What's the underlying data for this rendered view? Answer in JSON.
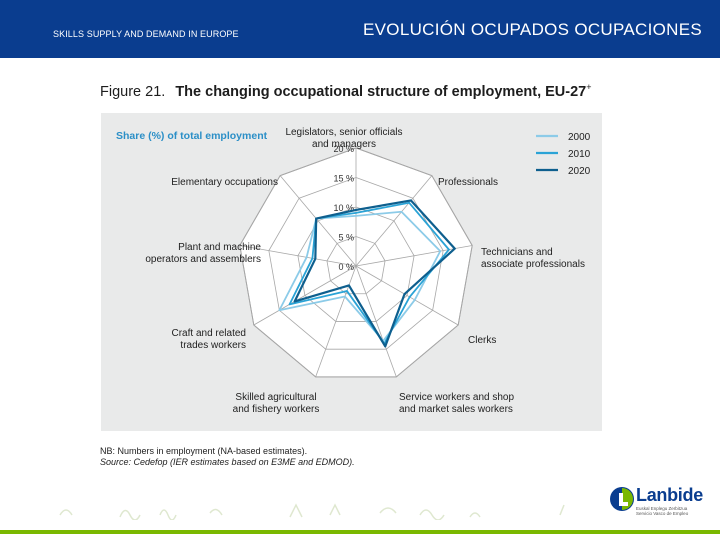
{
  "header": {
    "left_text": "SKILLS SUPPLY AND DEMAND IN EUROPE",
    "right_text": "EVOLUCIÓN OCUPADOS OCUPACIONES"
  },
  "figure": {
    "number": "Figure 21.",
    "title": "The changing occupational structure of employment, EU-27",
    "title_sup": "+",
    "note_line1": "NB: Numbers in employment (NA-based estimates).",
    "note_line2": "Source: Cedefop (IER estimates based on E3ME and EDMOD)."
  },
  "logo": {
    "name": "Lanbide",
    "subtitle": "Euskal Enplegu Zerbitzua Servicio Vasco de Empleo"
  },
  "colors": {
    "header_bg": "#0a3d8f",
    "series_2000": "#8ccbe8",
    "series_2010": "#2aa3d6",
    "series_2020": "#0e5f8e",
    "accent_green": "#7ab800"
  },
  "chart_data": {
    "type": "radar",
    "title": "Share (%) of total employment",
    "axis_labels": [
      "Legislators, senior officials and managers",
      "Professionals",
      "Technicians and associate professionals",
      "Clerks",
      "Service workers and shop and market sales workers",
      "Skilled agricultural and fishery workers",
      "Craft and related trades workers",
      "Plant and machine operators and assemblers",
      "Elementary occupations"
    ],
    "axis_label_lines": [
      [
        "Legislators, senior officials",
        "and managers"
      ],
      [
        "Professionals"
      ],
      [
        "Technicians and",
        "associate professionals"
      ],
      [
        "Clerks"
      ],
      [
        "Service workers and shop",
        "and market sales workers"
      ],
      [
        "Skilled agricultural",
        "and fishery workers"
      ],
      [
        "Craft and related",
        "trades workers"
      ],
      [
        "Plant and machine",
        "operators and assemblers"
      ],
      [
        "Elementary occupations"
      ]
    ],
    "rings": [
      0,
      5,
      10,
      15,
      20
    ],
    "ring_labels": [
      "0 %",
      "5 %",
      "10 %",
      "15 %",
      "20 %"
    ],
    "rlim": [
      0,
      20
    ],
    "series": [
      {
        "name": "2000",
        "values": [
          8.5,
          12,
          14.5,
          11.5,
          13.5,
          5.5,
          15,
          8.5,
          10.5
        ]
      },
      {
        "name": "2010",
        "values": [
          9,
          14,
          16,
          10.5,
          14,
          4.5,
          13,
          7.5,
          10.5
        ]
      },
      {
        "name": "2020",
        "values": [
          9.5,
          14.5,
          17,
          9.5,
          14.5,
          3.5,
          12,
          7,
          10.5
        ]
      }
    ],
    "legend": [
      "2000",
      "2010",
      "2020"
    ],
    "legend_position": "top-right"
  }
}
